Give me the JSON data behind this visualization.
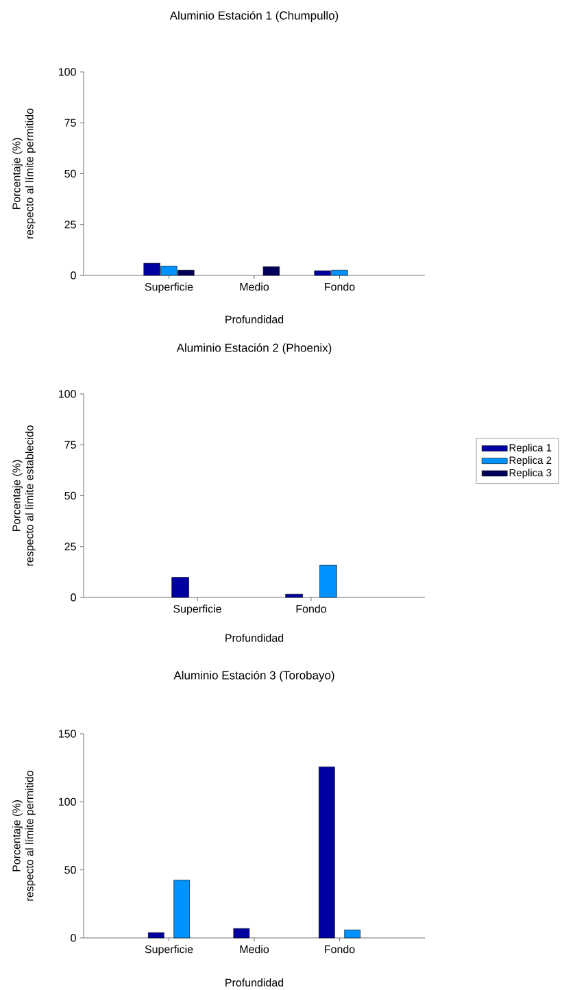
{
  "chart_data": [
    {
      "type": "bar",
      "title": "Aluminio Estación 1 (Chumpullo)",
      "xlabel": "Profundidad",
      "ylabel": "Porcentaje (%) respecto al límite permitido",
      "categories": [
        "Superficie",
        "Medio",
        "Fondo"
      ],
      "series": [
        {
          "name": "Replica 1",
          "color": "#0000a0",
          "values": [
            6.0,
            null,
            2.3
          ]
        },
        {
          "name": "Replica 2",
          "color": "#0092ff",
          "values": [
            4.6,
            null,
            2.6
          ]
        },
        {
          "name": "Replica 3",
          "color": "#000058",
          "values": [
            2.6,
            4.3,
            null
          ]
        }
      ],
      "ylim": [
        0,
        100
      ],
      "yticks": [
        0,
        25,
        50,
        75,
        100
      ],
      "legend": "right"
    },
    {
      "type": "bar",
      "title": "Aluminio Estación 2 (Phoenix)",
      "xlabel": "Profundidad",
      "ylabel": "Porcentaje (%) respecto al límite establecido",
      "categories": [
        "Superficie",
        "Fondo"
      ],
      "series": [
        {
          "color": "#0000a0",
          "values": [
            9.9,
            1.6
          ]
        },
        {
          "color": "#0092ff",
          "values": [
            null,
            15.8
          ]
        }
      ],
      "ylim": [
        0,
        100
      ],
      "yticks": [
        0,
        25,
        50,
        75,
        100
      ]
    },
    {
      "type": "bar",
      "title": "Aluminio Estación 3 (Torobayo)",
      "xlabel": "Profundidad",
      "ylabel": "Porcentaje (%) respecto al límite permitido",
      "categories": [
        "Superficie",
        "Medio",
        "Fondo"
      ],
      "series": [
        {
          "color": "#0000a0",
          "values": [
            3.9,
            6.9,
            125.7
          ]
        },
        {
          "color": "#0092ff",
          "values": [
            42.5,
            null,
            5.9
          ]
        }
      ],
      "ylim": [
        0,
        150
      ],
      "yticks": [
        0,
        50,
        100,
        150
      ]
    }
  ]
}
